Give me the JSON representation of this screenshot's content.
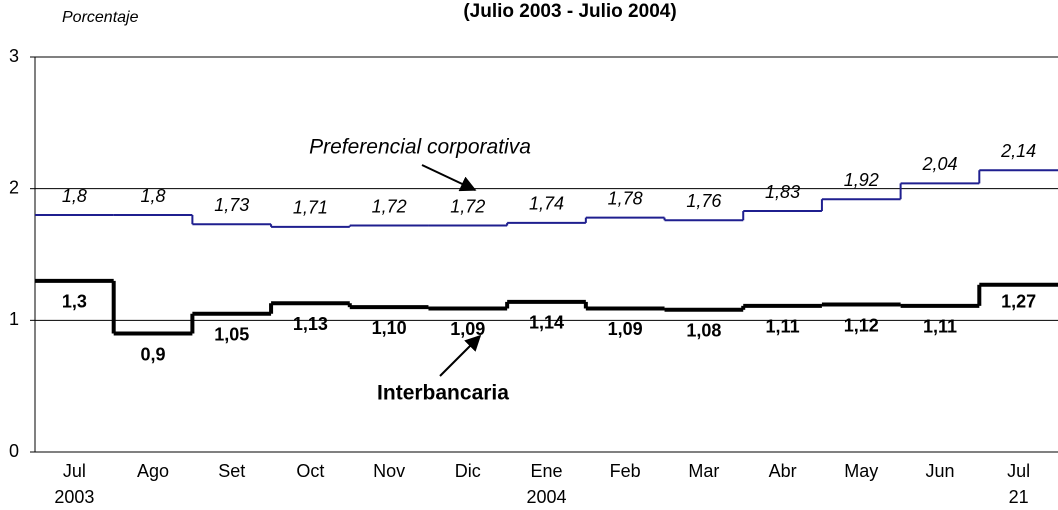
{
  "chart_data": {
    "type": "step-line",
    "title": "(Julio 2003 - Julio 2004)",
    "y_label": "Porcentaje",
    "categories": [
      "Jul",
      "Ago",
      "Set",
      "Oct",
      "Nov",
      "Dic",
      "Ene",
      "Feb",
      "Mar",
      "Abr",
      "May",
      "Jun",
      "Jul"
    ],
    "category_sublabels": [
      "2003",
      null,
      null,
      null,
      null,
      null,
      "2004",
      null,
      null,
      null,
      null,
      null,
      "21"
    ],
    "ylim": [
      0,
      3
    ],
    "yticks": [
      0,
      1,
      2,
      3
    ],
    "grid": true,
    "series": [
      {
        "name": "Preferencial corporativa",
        "color": "#1f1f8f",
        "values": [
          1.8,
          1.8,
          1.73,
          1.71,
          1.72,
          1.72,
          1.74,
          1.78,
          1.76,
          1.83,
          1.92,
          2.04,
          2.14
        ],
        "value_labels": [
          "1,8",
          "1,8",
          "1,73",
          "1,71",
          "1,72",
          "1,72",
          "1,74",
          "1,78",
          "1,76",
          "1,83",
          "1,92",
          "2,04",
          "2,14"
        ]
      },
      {
        "name": "Interbancaria",
        "color": "#000000",
        "values": [
          1.3,
          0.9,
          1.05,
          1.13,
          1.1,
          1.09,
          1.14,
          1.09,
          1.08,
          1.11,
          1.12,
          1.11,
          1.27
        ],
        "value_labels": [
          "1,3",
          "0,9",
          "1,05",
          "1,13",
          "1,10",
          "1,09",
          "1,14",
          "1,09",
          "1,08",
          "1,11",
          "1,12",
          "1,11",
          "1,27"
        ]
      }
    ]
  }
}
